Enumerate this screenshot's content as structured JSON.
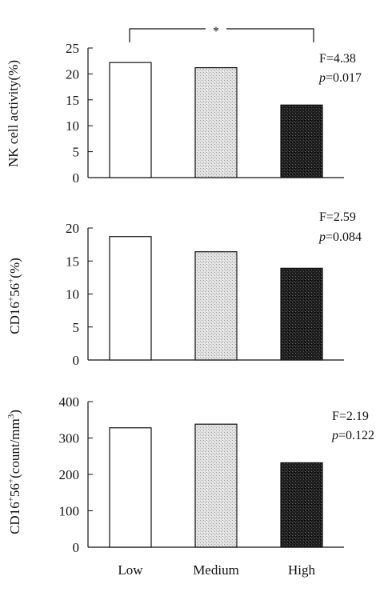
{
  "chart_data": [
    {
      "type": "bar",
      "categories": [
        "Low",
        "Medium",
        "High"
      ],
      "values": [
        22.2,
        21.2,
        14.0
      ],
      "ylabel": "NK cell activity(%)",
      "ylim": [
        0,
        25
      ],
      "yticks": [
        0,
        5,
        10,
        15,
        20,
        25
      ],
      "stats": {
        "f": "F=4.38",
        "p_prefix": "p",
        "p_value": "=0.017"
      },
      "significance": {
        "between": [
          "Low",
          "High"
        ],
        "label": "*"
      },
      "bar_fills": [
        "white",
        "light-stipple",
        "dark-stipple"
      ]
    },
    {
      "type": "bar",
      "categories": [
        "Low",
        "Medium",
        "High"
      ],
      "values": [
        18.7,
        16.4,
        13.9
      ],
      "ylabel_main": "CD16",
      "ylabel_sup1": "+",
      "ylabel_mid": "56",
      "ylabel_sup2": "+",
      "ylabel_tail": "(%)",
      "ylim": [
        0,
        20
      ],
      "yticks": [
        0,
        5,
        10,
        15,
        20
      ],
      "stats": {
        "f": "F=2.59",
        "p_prefix": "p",
        "p_value": "=0.084"
      },
      "bar_fills": [
        "white",
        "light-stipple",
        "dark-stipple"
      ]
    },
    {
      "type": "bar",
      "categories": [
        "Low",
        "Medium",
        "High"
      ],
      "values": [
        328,
        338,
        232
      ],
      "ylabel_main": "CD16",
      "ylabel_sup1": "+",
      "ylabel_mid": "56",
      "ylabel_sup2": "+",
      "ylabel_tail": "(count/mm",
      "ylabel_sup3": "3",
      "ylabel_close": ")",
      "ylim": [
        0,
        400
      ],
      "yticks": [
        0,
        100,
        200,
        300,
        400
      ],
      "stats": {
        "f": "F=2.19",
        "p_prefix": "p",
        "p_value": "=0.122"
      },
      "bar_fills": [
        "white",
        "light-stipple",
        "dark-stipple"
      ]
    }
  ],
  "x_categories": [
    "Low",
    "Medium",
    "High"
  ]
}
